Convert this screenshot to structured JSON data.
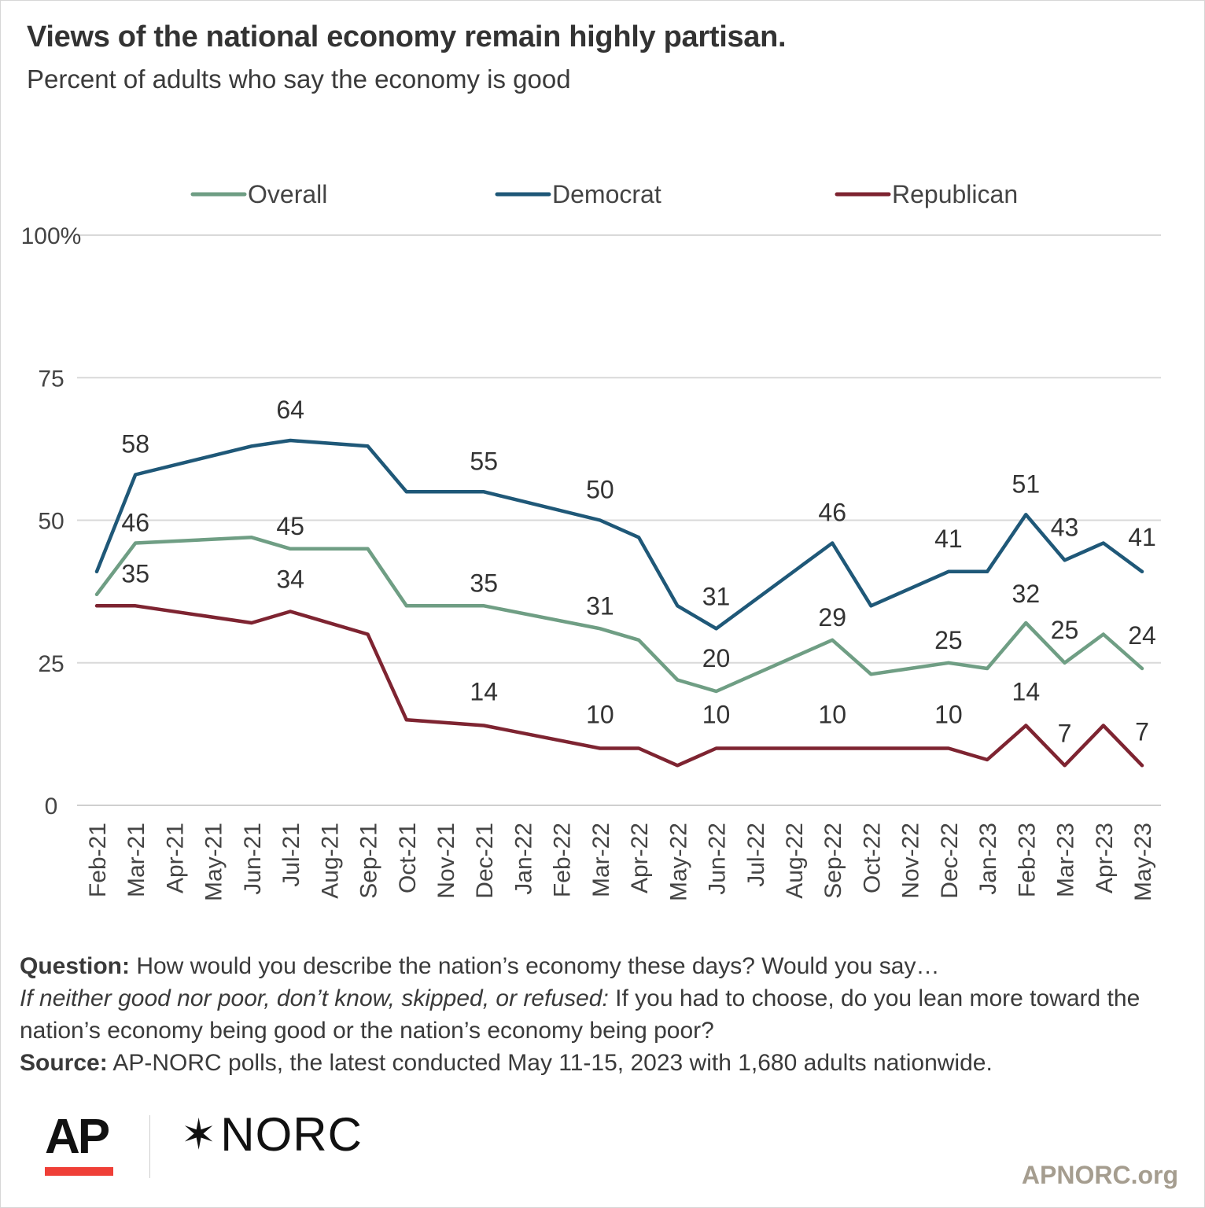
{
  "title": "Views of the national economy remain highly partisan.",
  "subtitle": "Percent of adults who say the economy is good",
  "notes": {
    "question_label": "Question:",
    "question_text": " How would you describe the nation’s economy these days? Would you say…",
    "followup_italic": "If neither good nor poor, don’t know, skipped, or refused:",
    "followup_text": " If you had to choose, do you lean more toward the nation’s economy being good or the nation’s economy being poor?",
    "source_label": "Source:",
    "source_text": " AP-NORC polls, the latest conducted May 11-15, 2023 with 1,680 adults nationwide."
  },
  "logos": {
    "ap": "AP",
    "norc_star": "✶",
    "norc": "NORC",
    "site": "APNORC.org"
  },
  "colors": {
    "Overall": "#6f9e84",
    "Democrat": "#1f5878",
    "Republican": "#7e2431",
    "grid": "#d9d9d9",
    "text": "#333333"
  },
  "chart_data": {
    "type": "line",
    "x": [
      "Feb-21",
      "Mar-21",
      "Apr-21",
      "May-21",
      "Jun-21",
      "Jul-21",
      "Aug-21",
      "Sep-21",
      "Oct-21",
      "Nov-21",
      "Dec-21",
      "Jan-22",
      "Feb-22",
      "Mar-22",
      "Apr-22",
      "May-22",
      "Jun-22",
      "Jul-22",
      "Aug-22",
      "Sep-22",
      "Oct-22",
      "Nov-22",
      "Dec-22",
      "Jan-23",
      "Feb-23",
      "Mar-23",
      "Apr-23",
      "May-23"
    ],
    "ylim": [
      0,
      100
    ],
    "yticks": [
      0,
      25,
      50,
      75,
      100
    ],
    "ytick_labels": [
      "0",
      "25",
      "50",
      "75",
      "100%"
    ],
    "grid": true,
    "legend_position": "top",
    "series": [
      {
        "name": "Overall",
        "values": [
          37,
          46,
          null,
          null,
          47,
          45,
          null,
          45,
          35,
          null,
          35,
          null,
          null,
          31,
          29,
          22,
          20,
          null,
          null,
          29,
          23,
          null,
          25,
          24,
          32,
          25,
          30,
          24
        ],
        "labels": [
          {
            "x": "Mar-21",
            "text": "46"
          },
          {
            "x": "Jul-21",
            "text": "45"
          },
          {
            "x": "Dec-21",
            "text": "35"
          },
          {
            "x": "Mar-22",
            "text": "31"
          },
          {
            "x": "Jun-22",
            "text": "20"
          },
          {
            "x": "Sep-22",
            "text": "29"
          },
          {
            "x": "Dec-22",
            "text": "25"
          },
          {
            "x": "Feb-23",
            "text": "32"
          },
          {
            "x": "Mar-23",
            "text": "25"
          },
          {
            "x": "May-23",
            "text": "24"
          }
        ]
      },
      {
        "name": "Democrat",
        "values": [
          41,
          58,
          null,
          null,
          63,
          64,
          null,
          63,
          55,
          null,
          55,
          null,
          null,
          50,
          47,
          35,
          31,
          null,
          null,
          46,
          35,
          null,
          41,
          41,
          51,
          43,
          46,
          41
        ],
        "labels": [
          {
            "x": "Mar-21",
            "text": "58"
          },
          {
            "x": "Jul-21",
            "text": "64"
          },
          {
            "x": "Dec-21",
            "text": "55"
          },
          {
            "x": "Mar-22",
            "text": "50"
          },
          {
            "x": "Jun-22",
            "text": "31"
          },
          {
            "x": "Sep-22",
            "text": "46"
          },
          {
            "x": "Dec-22",
            "text": "41"
          },
          {
            "x": "Feb-23",
            "text": "51"
          },
          {
            "x": "Mar-23",
            "text": "43"
          },
          {
            "x": "May-23",
            "text": "41"
          }
        ]
      },
      {
        "name": "Republican",
        "values": [
          35,
          35,
          null,
          null,
          32,
          34,
          null,
          30,
          15,
          null,
          14,
          null,
          null,
          10,
          10,
          7,
          10,
          null,
          null,
          10,
          10,
          null,
          10,
          8,
          14,
          7,
          14,
          7
        ],
        "labels": [
          {
            "x": "Mar-21",
            "text": "35"
          },
          {
            "x": "Jul-21",
            "text": "34"
          },
          {
            "x": "Dec-21",
            "text": "14"
          },
          {
            "x": "Mar-22",
            "text": "10"
          },
          {
            "x": "Jun-22",
            "text": "10"
          },
          {
            "x": "Sep-22",
            "text": "10"
          },
          {
            "x": "Dec-22",
            "text": "10"
          },
          {
            "x": "Feb-23",
            "text": "14"
          },
          {
            "x": "Mar-23",
            "text": "7"
          },
          {
            "x": "May-23",
            "text": "7"
          }
        ]
      }
    ]
  }
}
